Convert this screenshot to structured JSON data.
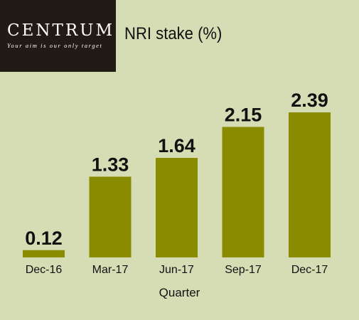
{
  "logo": {
    "name": "CENTRUM",
    "tagline": "Your aim is our only target"
  },
  "chart_data": {
    "type": "bar",
    "title": "NRI stake (%)",
    "xlabel": "Quarter",
    "ylabel": "",
    "categories": [
      "Dec-16",
      "Mar-17",
      "Jun-17",
      "Sep-17",
      "Dec-17"
    ],
    "values": [
      0.12,
      1.33,
      1.64,
      2.15,
      2.39
    ],
    "value_labels": [
      "0.12",
      "1.33",
      "1.64",
      "2.15",
      "2.39"
    ],
    "ylim": [
      0,
      2.39
    ],
    "grid": false,
    "legend": "none"
  },
  "colors": {
    "bar": "#8a8c00",
    "background": "#d6dcb4",
    "logo_background": "#221a14",
    "text": "#111111"
  }
}
